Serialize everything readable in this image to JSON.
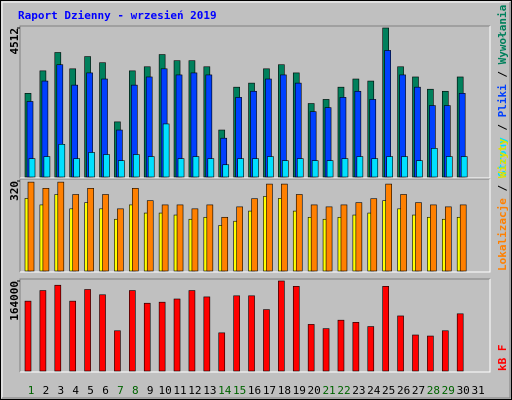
{
  "title": "Raport Dzienny -  wrzesień 2019",
  "chart_data": [
    {
      "type": "bar",
      "categories": [
        "1",
        "2",
        "3",
        "4",
        "5",
        "6",
        "7",
        "8",
        "9",
        "10",
        "11",
        "12",
        "13",
        "14",
        "15",
        "16",
        "17",
        "18",
        "19",
        "20",
        "21",
        "22",
        "23",
        "24",
        "25",
        "26",
        "27",
        "28",
        "29",
        "30",
        "31"
      ],
      "category_colors": [
        "#006400",
        "#000000",
        "#000000",
        "#000000",
        "#000000",
        "#000000",
        "#006400",
        "#006400",
        "#000000",
        "#000000",
        "#000000",
        "#000000",
        "#000000",
        "#006400",
        "#006400",
        "#000000",
        "#000000",
        "#000000",
        "#000000",
        "#000000",
        "#006400",
        "#006400",
        "#000000",
        "#000000",
        "#000000",
        "#000000",
        "#000000",
        "#006400",
        "#006400",
        "#000000",
        "#000000"
      ],
      "legend_separator": " / ",
      "ylim": [
        0,
        4512
      ],
      "yticks": [
        4512
      ],
      "series": [
        {
          "name": "Strony",
          "color": "#00e0ff",
          "values": [
            556,
            618,
            989,
            556,
            742,
            680,
            494,
            680,
            618,
            1607,
            556,
            618,
            556,
            371,
            556,
            556,
            618,
            494,
            556,
            494,
            494,
            556,
            618,
            556,
            618,
            618,
            494,
            865,
            618,
            618,
            null
          ]
        },
        {
          "name": "Pliki",
          "color": "#0040ff",
          "values": [
            2287,
            2905,
            3400,
            2782,
            3152,
            2967,
            1422,
            2782,
            3029,
            3276,
            3091,
            3152,
            3091,
            1175,
            2411,
            2596,
            2967,
            3091,
            2843,
            1978,
            2101,
            2411,
            2596,
            2349,
            3832,
            3091,
            2720,
            2163,
            2163,
            2534,
            null
          ]
        },
        {
          "name": "Wywołania",
          "color": "#00805c",
          "values": [
            2534,
            3214,
            3770,
            3276,
            3647,
            3461,
            1669,
            3214,
            3338,
            3708,
            3523,
            3523,
            3338,
            1422,
            2720,
            2843,
            3276,
            3400,
            3152,
            2225,
            2349,
            2720,
            2967,
            2905,
            4512,
            3338,
            3029,
            2658,
            2596,
            3029,
            null
          ]
        }
      ]
    },
    {
      "type": "bar",
      "legend_separator": " / ",
      "ylim": [
        0,
        320
      ],
      "yticks": [
        320
      ],
      "series": [
        {
          "name": "Lokalizacje",
          "color": "#ff8000",
          "values": [
            316,
            294,
            316,
            272,
            294,
            272,
            221,
            294,
            250,
            235,
            235,
            221,
            235,
            191,
            228,
            257,
            309,
            309,
            272,
            235,
            228,
            235,
            243,
            257,
            309,
            272,
            243,
            235,
            228,
            235,
            null
          ]
        },
        {
          "name": "Wizyty",
          "color": "#ffff00",
          "values": [
            258,
            235,
            272,
            221,
            243,
            221,
            184,
            235,
            206,
            206,
            199,
            184,
            191,
            162,
            177,
            213,
            265,
            258,
            213,
            191,
            184,
            191,
            199,
            206,
            250,
            221,
            199,
            191,
            184,
            191,
            null
          ]
        }
      ]
    },
    {
      "type": "bar",
      "legend_separator": " / ",
      "ylim": [
        0,
        164000
      ],
      "yticks": [
        164000
      ],
      "series": [
        {
          "name": "kB F",
          "color": "#ff0000",
          "values": [
            127300,
            146600,
            156300,
            127300,
            148500,
            138900,
            73300,
            146600,
            123500,
            125400,
            131200,
            146600,
            135000,
            69500,
            137000,
            137000,
            111900,
            164000,
            154300,
            84900,
            77200,
            92600,
            88700,
            81000,
            154300,
            100300,
            65600,
            63700,
            73300,
            104200,
            null
          ]
        }
      ]
    }
  ]
}
